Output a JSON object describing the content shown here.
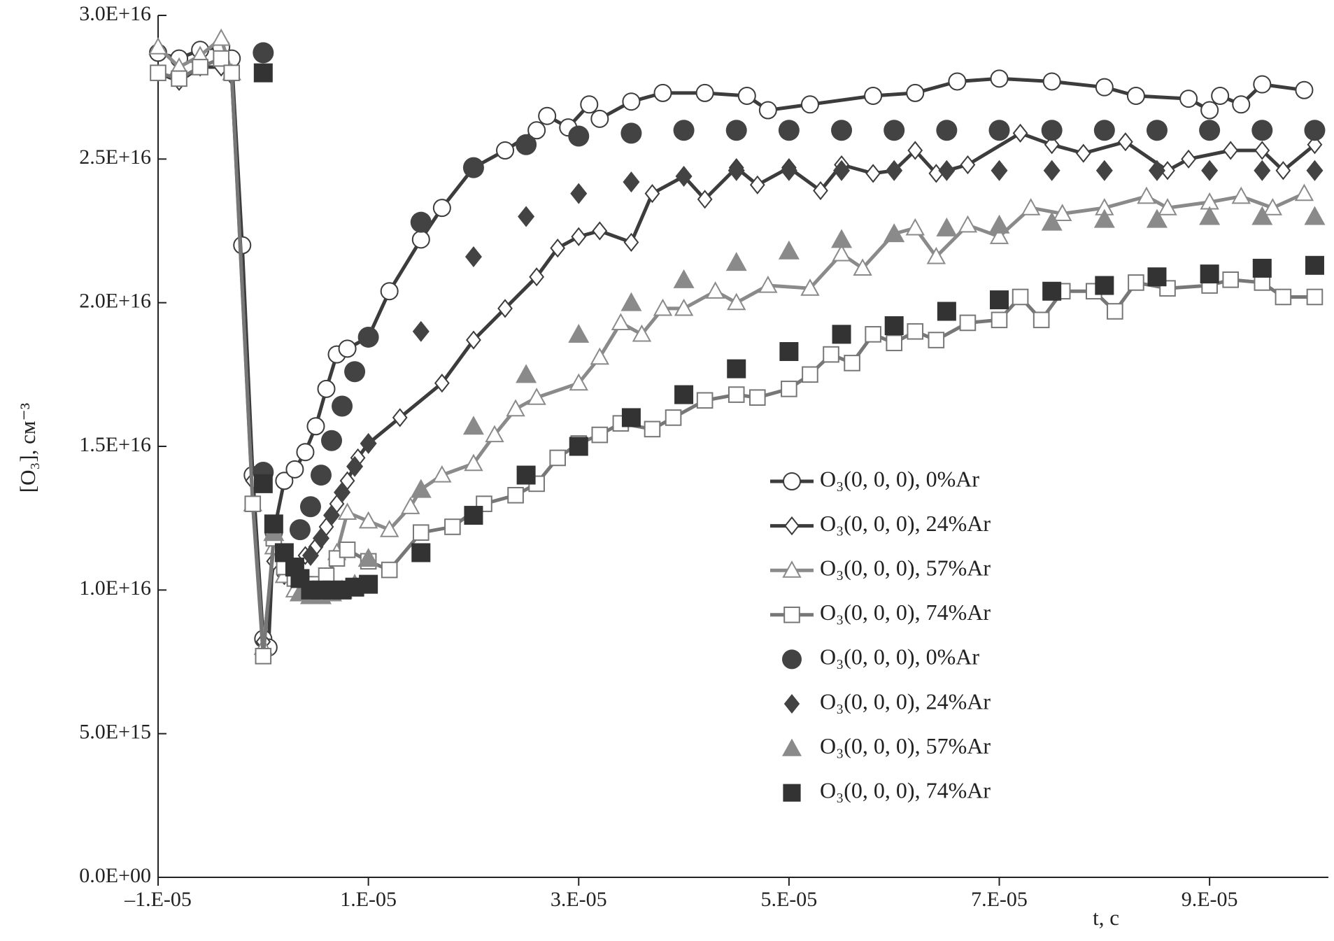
{
  "chart_data": {
    "type": "line",
    "xlabel": "t, с",
    "ylabel": "[O₃], см⁻³",
    "xlim": [
      -1e-05,
      0.0001013
    ],
    "ylim": [
      0,
      3e+16
    ],
    "xticks": [
      {
        "value": -1e-05,
        "label": "–1.E-05"
      },
      {
        "value": 1e-05,
        "label": "1.E-05"
      },
      {
        "value": 3e-05,
        "label": "3.E-05"
      },
      {
        "value": 5e-05,
        "label": "5.E-05"
      },
      {
        "value": 7e-05,
        "label": "7.E-05"
      },
      {
        "value": 9e-05,
        "label": "9.E-05"
      }
    ],
    "yticks": [
      {
        "value": 0,
        "label": "0.0E+00"
      },
      {
        "value": 5000000000000000.0,
        "label": "5.0E+15"
      },
      {
        "value": 1e+16,
        "label": "1.0E+16"
      },
      {
        "value": 1.5e+16,
        "label": "1.5E+16"
      },
      {
        "value": 2e+16,
        "label": "2.0E+16"
      },
      {
        "value": 2.5e+16,
        "label": "2.5E+16"
      },
      {
        "value": 3e+16,
        "label": "3.0E+16"
      }
    ],
    "series": [
      {
        "name": "O₃(0, 0, 0), 0%Ar",
        "type": "line",
        "marker": "circle",
        "filled": false,
        "color": "#3c3c3c",
        "x": [
          -1e-05,
          -8e-06,
          -6e-06,
          -4e-06,
          -3e-06,
          -2e-06,
          -1e-06,
          0,
          5e-07,
          1e-06,
          2e-06,
          3e-06,
          4e-06,
          5e-06,
          6e-06,
          7e-06,
          8e-06,
          1e-05,
          1.2e-05,
          1.5e-05,
          1.7e-05,
          2e-05,
          2.3e-05,
          2.6e-05,
          2.7e-05,
          2.9e-05,
          3.1e-05,
          3.2e-05,
          3.5e-05,
          3.8e-05,
          4.2e-05,
          4.6e-05,
          4.8e-05,
          5.2e-05,
          5.8e-05,
          6.2e-05,
          6.6e-05,
          7e-05,
          7.5e-05,
          8e-05,
          8.3e-05,
          8.8e-05,
          9e-05,
          9.1e-05,
          9.3e-05,
          9.5e-05,
          9.9e-05
        ],
        "values": [
          2.87e+16,
          2.85e+16,
          2.88e+16,
          2.89e+16,
          2.85e+16,
          2.2e+16,
          1.4e+16,
          8300000000000000.0,
          8000000000000000.0,
          1.2e+16,
          1.38e+16,
          1.42e+16,
          1.48e+16,
          1.57e+16,
          1.7e+16,
          1.82e+16,
          1.84e+16,
          1.88e+16,
          2.04e+16,
          2.22e+16,
          2.33e+16,
          2.47e+16,
          2.53e+16,
          2.6e+16,
          2.65e+16,
          2.61e+16,
          2.69e+16,
          2.64e+16,
          2.7e+16,
          2.73e+16,
          2.73e+16,
          2.72e+16,
          2.67e+16,
          2.69e+16,
          2.72e+16,
          2.73e+16,
          2.77e+16,
          2.78e+16,
          2.77e+16,
          2.75e+16,
          2.72e+16,
          2.71e+16,
          2.67e+16,
          2.72e+16,
          2.69e+16,
          2.76e+16,
          2.74e+16
        ]
      },
      {
        "name": "O₃(0, 0, 0), 24%Ar",
        "type": "line",
        "marker": "diamond",
        "filled": false,
        "color": "#3c3c3c",
        "x": [
          -1e-05,
          -8e-06,
          -6e-06,
          -4e-06,
          -3e-06,
          -1e-06,
          0,
          1e-06,
          2e-06,
          3e-06,
          4e-06,
          5e-06,
          6e-06,
          7e-06,
          8e-06,
          9e-06,
          1e-05,
          1.3e-05,
          1.7e-05,
          2e-05,
          2.3e-05,
          2.6e-05,
          2.8e-05,
          3e-05,
          3.2e-05,
          3.5e-05,
          3.7e-05,
          4e-05,
          4.2e-05,
          4.5e-05,
          4.7e-05,
          5e-05,
          5.3e-05,
          5.5e-05,
          5.8e-05,
          6e-05,
          6.2e-05,
          6.4e-05,
          6.7e-05,
          7.2e-05,
          7.5e-05,
          7.8e-05,
          8.2e-05,
          8.6e-05,
          8.8e-05,
          9.2e-05,
          9.5e-05,
          9.7e-05,
          0.0001
        ],
        "values": [
          2.8e+16,
          2.77e+16,
          2.82e+16,
          2.82e+16,
          2.79e+16,
          1.38e+16,
          8200000000000000.0,
          1.1e+16,
          1.05e+16,
          1.08e+16,
          1.12e+16,
          1.15e+16,
          1.22e+16,
          1.3e+16,
          1.38e+16,
          1.46e+16,
          1.51e+16,
          1.6e+16,
          1.72e+16,
          1.87e+16,
          1.98e+16,
          2.09e+16,
          2.19e+16,
          2.23e+16,
          2.25e+16,
          2.21e+16,
          2.38e+16,
          2.44e+16,
          2.36e+16,
          2.47e+16,
          2.41e+16,
          2.47e+16,
          2.39e+16,
          2.48e+16,
          2.45e+16,
          2.46e+16,
          2.53e+16,
          2.45e+16,
          2.48e+16,
          2.59e+16,
          2.55e+16,
          2.52e+16,
          2.56e+16,
          2.46e+16,
          2.5e+16,
          2.53e+16,
          2.53e+16,
          2.46e+16,
          2.55e+16
        ]
      },
      {
        "name": "O₃(0, 0, 0), 57%Ar",
        "type": "line",
        "marker": "triangle",
        "filled": false,
        "color": "#8a8a8a",
        "x": [
          -1e-05,
          -8e-06,
          -6e-06,
          -4e-06,
          -3e-06,
          -1e-06,
          0,
          1e-06,
          2e-06,
          3e-06,
          4e-06,
          5e-06,
          6e-06,
          7e-06,
          8e-06,
          1e-05,
          1.2e-05,
          1.4e-05,
          1.5e-05,
          1.7e-05,
          2e-05,
          2.2e-05,
          2.4e-05,
          2.6e-05,
          3e-05,
          3.2e-05,
          3.4e-05,
          3.6e-05,
          3.8e-05,
          4e-05,
          4.3e-05,
          4.5e-05,
          4.8e-05,
          5.2e-05,
          5.5e-05,
          5.7e-05,
          6e-05,
          6.2e-05,
          6.4e-05,
          6.7e-05,
          7e-05,
          7.3e-05,
          7.6e-05,
          8e-05,
          8.4e-05,
          8.6e-05,
          9e-05,
          9.3e-05,
          9.6e-05,
          9.9e-05
        ],
        "values": [
          2.89e+16,
          2.82e+16,
          2.86e+16,
          2.92e+16,
          2.8e+16,
          1.3e+16,
          8000000000000000.0,
          1.15e+16,
          1.05e+16,
          1e+16,
          9900000000000000.0,
          9900000000000000.0,
          1.02e+16,
          1.13e+16,
          1.27e+16,
          1.24e+16,
          1.21e+16,
          1.29e+16,
          1.35e+16,
          1.4e+16,
          1.44e+16,
          1.54e+16,
          1.63e+16,
          1.67e+16,
          1.72e+16,
          1.81e+16,
          1.93e+16,
          1.89e+16,
          1.98e+16,
          1.98e+16,
          2.04e+16,
          2e+16,
          2.06e+16,
          2.05e+16,
          2.17e+16,
          2.12e+16,
          2.24e+16,
          2.26e+16,
          2.16e+16,
          2.27e+16,
          2.23e+16,
          2.33e+16,
          2.31e+16,
          2.33e+16,
          2.37e+16,
          2.33e+16,
          2.35e+16,
          2.37e+16,
          2.33e+16,
          2.38e+16
        ]
      },
      {
        "name": "O₃(0, 0, 0), 74%Ar",
        "type": "line",
        "marker": "square",
        "filled": false,
        "color": "#777777",
        "x": [
          -1e-05,
          -8e-06,
          -6e-06,
          -4e-06,
          -3e-06,
          -1e-06,
          0,
          1e-06,
          2e-06,
          3e-06,
          4e-06,
          5e-06,
          6e-06,
          7e-06,
          8e-06,
          1e-05,
          1.2e-05,
          1.5e-05,
          1.8e-05,
          2.1e-05,
          2.4e-05,
          2.6e-05,
          2.8e-05,
          3e-05,
          3.2e-05,
          3.4e-05,
          3.7e-05,
          3.9e-05,
          4.2e-05,
          4.5e-05,
          4.7e-05,
          5e-05,
          5.2e-05,
          5.4e-05,
          5.6e-05,
          5.8e-05,
          6e-05,
          6.2e-05,
          6.4e-05,
          6.7e-05,
          7e-05,
          7.2e-05,
          7.4e-05,
          7.6e-05,
          7.9e-05,
          8.1e-05,
          8.3e-05,
          8.6e-05,
          9e-05,
          9.2e-05,
          9.5e-05,
          9.7e-05,
          0.0001
        ],
        "values": [
          2.8e+16,
          2.78e+16,
          2.82e+16,
          2.85e+16,
          2.8e+16,
          1.3e+16,
          7700000000000000.0,
          1.18e+16,
          1.08e+16,
          1.04e+16,
          1.02e+16,
          1.02e+16,
          1.05e+16,
          1.11e+16,
          1.14e+16,
          1.1e+16,
          1.07e+16,
          1.2e+16,
          1.22e+16,
          1.3e+16,
          1.33e+16,
          1.37e+16,
          1.46e+16,
          1.51e+16,
          1.54e+16,
          1.58e+16,
          1.56e+16,
          1.6e+16,
          1.66e+16,
          1.68e+16,
          1.67e+16,
          1.7e+16,
          1.75e+16,
          1.82e+16,
          1.79e+16,
          1.89e+16,
          1.86e+16,
          1.9e+16,
          1.87e+16,
          1.93e+16,
          1.94e+16,
          2.02e+16,
          1.94e+16,
          2.04e+16,
          2.04e+16,
          1.97e+16,
          2.07e+16,
          2.05e+16,
          2.06e+16,
          2.08e+16,
          2.07e+16,
          2.02e+16,
          2.02e+16
        ]
      },
      {
        "name": "O₃(0, 0, 0), 0%Ar",
        "type": "scatter",
        "marker": "circle",
        "filled": true,
        "color": "#434343",
        "x": [
          0,
          0,
          3.5e-06,
          4.5e-06,
          5.5e-06,
          6.5e-06,
          7.5e-06,
          8.7e-06,
          1e-05,
          1.5e-05,
          2e-05,
          2.5e-05,
          3e-05,
          3.5e-05,
          4e-05,
          4.5e-05,
          5e-05,
          5.5e-05,
          6e-05,
          6.5e-05,
          7e-05,
          7.5e-05,
          8e-05,
          8.5e-05,
          9e-05,
          9.5e-05,
          0.0001
        ],
        "values": [
          2.87e+16,
          1.41e+16,
          1.21e+16,
          1.29e+16,
          1.4e+16,
          1.52e+16,
          1.64e+16,
          1.76e+16,
          1.88e+16,
          2.28e+16,
          2.47e+16,
          2.55e+16,
          2.58e+16,
          2.59e+16,
          2.6e+16,
          2.6e+16,
          2.6e+16,
          2.6e+16,
          2.6e+16,
          2.6e+16,
          2.6e+16,
          2.6e+16,
          2.6e+16,
          2.6e+16,
          2.6e+16,
          2.6e+16,
          2.6e+16
        ]
      },
      {
        "name": "O₃(0, 0, 0), 24%Ar",
        "type": "scatter",
        "marker": "diamond",
        "filled": true,
        "color": "#434343",
        "x": [
          4.5e-06,
          5.5e-06,
          6.5e-06,
          7.5e-06,
          8.7e-06,
          1e-05,
          1.5e-05,
          2e-05,
          2.5e-05,
          3e-05,
          3.5e-05,
          4e-05,
          4.5e-05,
          5e-05,
          5.5e-05,
          6e-05,
          6.5e-05,
          7e-05,
          7.5e-05,
          8e-05,
          8.5e-05,
          9e-05,
          9.5e-05,
          0.0001
        ],
        "values": [
          1.12e+16,
          1.18e+16,
          1.26e+16,
          1.34e+16,
          1.43e+16,
          1.51e+16,
          1.9e+16,
          2.16e+16,
          2.3e+16,
          2.38e+16,
          2.42e+16,
          2.44e+16,
          2.46e+16,
          2.46e+16,
          2.46e+16,
          2.46e+16,
          2.46e+16,
          2.46e+16,
          2.46e+16,
          2.46e+16,
          2.46e+16,
          2.46e+16,
          2.46e+16,
          2.46e+16
        ]
      },
      {
        "name": "O₃(0, 0, 0), 57%Ar",
        "type": "scatter",
        "marker": "triangle",
        "filled": true,
        "color": "#8a8a8a",
        "x": [
          1e-06,
          3.5e-06,
          4.5e-06,
          5.5e-06,
          6.5e-06,
          7.5e-06,
          8.7e-06,
          1e-05,
          1.5e-05,
          2e-05,
          2.5e-05,
          3e-05,
          3.5e-05,
          4e-05,
          4.5e-05,
          5e-05,
          5.5e-05,
          6e-05,
          6.5e-05,
          7e-05,
          7.5e-05,
          8e-05,
          8.5e-05,
          9e-05,
          9.5e-05,
          0.0001
        ],
        "values": [
          1.2e+16,
          9900000000000000.0,
          9800000000000000.0,
          9800000000000000.0,
          9900000000000000.0,
          1e+16,
          1.02e+16,
          1.11e+16,
          1.35e+16,
          1.57e+16,
          1.75e+16,
          1.89e+16,
          2e+16,
          2.08e+16,
          2.14e+16,
          2.18e+16,
          2.22e+16,
          2.24e+16,
          2.26e+16,
          2.27e+16,
          2.28e+16,
          2.29e+16,
          2.29e+16,
          2.3e+16,
          2.3e+16,
          2.3e+16
        ]
      },
      {
        "name": "O₃(0, 0, 0), 74%Ar",
        "type": "scatter",
        "marker": "square",
        "filled": true,
        "color": "#333333",
        "x": [
          0,
          0,
          1e-06,
          2e-06,
          3e-06,
          3.5e-06,
          4.5e-06,
          5.5e-06,
          6.5e-06,
          7.5e-06,
          8.7e-06,
          1e-05,
          1.5e-05,
          2e-05,
          2.5e-05,
          3e-05,
          3.5e-05,
          4e-05,
          4.5e-05,
          5e-05,
          5.5e-05,
          6e-05,
          6.5e-05,
          7e-05,
          7.5e-05,
          8e-05,
          8.5e-05,
          9e-05,
          9.5e-05,
          0.0001
        ],
        "values": [
          2.8e+16,
          1.37e+16,
          1.23e+16,
          1.13e+16,
          1.08e+16,
          1.04e+16,
          1e+16,
          1e+16,
          1e+16,
          1e+16,
          1.01e+16,
          1.02e+16,
          1.13e+16,
          1.26e+16,
          1.4e+16,
          1.5e+16,
          1.6e+16,
          1.68e+16,
          1.77e+16,
          1.83e+16,
          1.89e+16,
          1.92e+16,
          1.97e+16,
          2.01e+16,
          2.04e+16,
          2.06e+16,
          2.09e+16,
          2.1e+16,
          2.12e+16,
          2.13e+16
        ]
      }
    ]
  }
}
